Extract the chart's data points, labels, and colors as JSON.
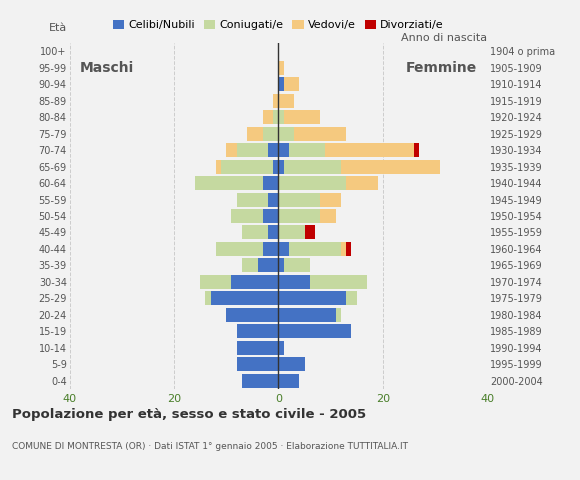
{
  "title": "Popolazione per età, sesso e stato civile - 2005",
  "subtitle": "COMUNE DI MONTRESTA (OR) · Dati ISTAT 1° gennaio 2005 · Elaborazione TUTTITALIA.IT",
  "ylabel_left": "Età",
  "ylabel_right": "Anno di nascita",
  "label_maschi": "Maschi",
  "label_femmine": "Femmine",
  "legend_labels": [
    "Celibi/Nubili",
    "Coniugati/e",
    "Vedovi/e",
    "Divorziati/e"
  ],
  "legend_colors": [
    "#4472c4",
    "#c5d9a0",
    "#f5c97f",
    "#c00000"
  ],
  "age_groups": [
    "0-4",
    "5-9",
    "10-14",
    "15-19",
    "20-24",
    "25-29",
    "30-34",
    "35-39",
    "40-44",
    "45-49",
    "50-54",
    "55-59",
    "60-64",
    "65-69",
    "70-74",
    "75-79",
    "80-84",
    "85-89",
    "90-94",
    "95-99",
    "100+"
  ],
  "birth_years": [
    "2000-2004",
    "1995-1999",
    "1990-1994",
    "1985-1989",
    "1980-1984",
    "1975-1979",
    "1970-1974",
    "1965-1969",
    "1960-1964",
    "1955-1959",
    "1950-1954",
    "1945-1949",
    "1940-1944",
    "1935-1939",
    "1930-1934",
    "1925-1929",
    "1920-1924",
    "1915-1919",
    "1910-1914",
    "1905-1909",
    "1904 o prima"
  ],
  "xlim": 40,
  "xticks": [
    -40,
    -20,
    0,
    20,
    40
  ],
  "xticklabels": [
    "40",
    "20",
    "0",
    "20",
    "40"
  ],
  "background_color": "#f2f2f2",
  "colors": {
    "celibi": "#4472c4",
    "coniugati": "#c5d9a0",
    "vedovi": "#f5c97f",
    "divorziati": "#c00000"
  },
  "maschi": {
    "celibi": [
      7,
      8,
      8,
      8,
      10,
      13,
      9,
      4,
      3,
      2,
      3,
      2,
      3,
      1,
      2,
      0,
      0,
      0,
      0,
      0,
      0
    ],
    "coniugati": [
      0,
      0,
      0,
      0,
      0,
      1,
      6,
      3,
      9,
      5,
      6,
      6,
      13,
      10,
      6,
      3,
      1,
      0,
      0,
      0,
      0
    ],
    "vedovi": [
      0,
      0,
      0,
      0,
      0,
      0,
      0,
      0,
      0,
      0,
      0,
      0,
      0,
      1,
      2,
      3,
      2,
      1,
      0,
      0,
      0
    ],
    "divorziati": [
      0,
      0,
      0,
      0,
      0,
      0,
      0,
      0,
      0,
      0,
      0,
      0,
      0,
      0,
      0,
      0,
      0,
      0,
      0,
      0,
      0
    ]
  },
  "femmine": {
    "celibi": [
      4,
      5,
      1,
      14,
      11,
      13,
      6,
      1,
      2,
      0,
      0,
      0,
      0,
      1,
      2,
      0,
      0,
      0,
      1,
      0,
      0
    ],
    "coniugati": [
      0,
      0,
      0,
      0,
      1,
      2,
      11,
      5,
      10,
      5,
      8,
      8,
      13,
      11,
      7,
      3,
      1,
      0,
      0,
      0,
      0
    ],
    "vedovi": [
      0,
      0,
      0,
      0,
      0,
      0,
      0,
      0,
      1,
      0,
      3,
      4,
      6,
      19,
      17,
      10,
      7,
      3,
      3,
      1,
      0
    ],
    "divorziati": [
      0,
      0,
      0,
      0,
      0,
      0,
      0,
      0,
      1,
      2,
      0,
      0,
      0,
      0,
      1,
      0,
      0,
      0,
      0,
      0,
      0
    ]
  }
}
